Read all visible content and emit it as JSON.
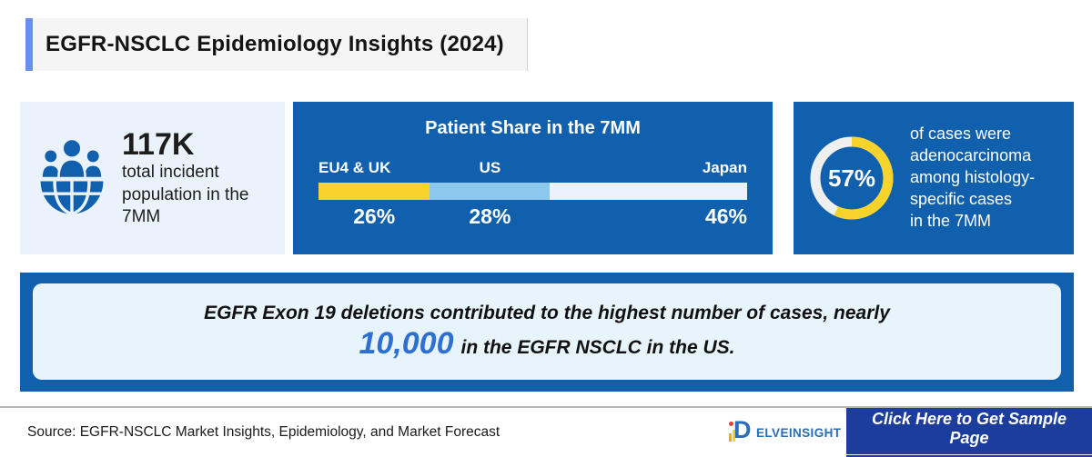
{
  "header": {
    "title": "EGFR-NSCLC Epidemiology Insights (2024)"
  },
  "left_card": {
    "value": "117K",
    "description": "total incident population in the 7MM",
    "icon": "population-globe-icon",
    "background": "#eaf2fb",
    "icon_color": "#1160ae"
  },
  "chart_data": {
    "type": "bar",
    "stacked": true,
    "title": "Patient Share in the 7MM",
    "categories": [
      "EU4 & UK",
      "US",
      "Japan"
    ],
    "values": [
      26,
      28,
      46
    ],
    "value_labels": [
      "26%",
      "28%",
      "46%"
    ],
    "colors": [
      "#f6d42c",
      "#8cc7ee",
      "#e9f2fa"
    ],
    "background": "#1160ae",
    "legend_position": "above-bar",
    "value_label_position": "below-bar"
  },
  "right_card": {
    "percent_label": "57%",
    "percent_value": 57,
    "description": "of cases were\nadenocarcinoma\namong histology-\nspecific cases\nin the 7MM",
    "ring_filled_color": "#f6d42c",
    "ring_empty_color": "#efefef",
    "background": "#1160ae"
  },
  "banner": {
    "line1": "EGFR Exon 19 deletions contributed to the highest number of cases, nearly",
    "highlight": "10,000",
    "line2_rest": "in the EGFR NSCLC in the US.",
    "highlight_color": "#2d6fd2",
    "outer_color": "#1160ae",
    "inner_color": "#e7f4fc"
  },
  "footer": {
    "source": "Source: EGFR-NSCLC Market Insights, Epidemiology, and Market Forecast",
    "logo_letter": "D",
    "logo_text": "ELVEINSIGHT",
    "button_label": "Click Here to Get Sample Page",
    "button_color": "#1c3d9b"
  },
  "accent_color": "#6b8ff0"
}
